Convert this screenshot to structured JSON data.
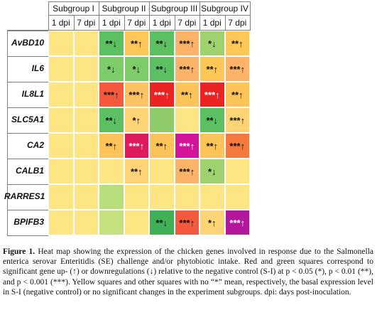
{
  "subgroups": [
    "Subgroup I",
    "Subgroup II",
    "Subgroup III",
    "Subgroup IV"
  ],
  "timepoints": [
    "1 dpi",
    "7 dpi",
    "1 dpi",
    "7 dpi",
    "1 dpi",
    "7 dpi",
    "1 dpi",
    "7 dpi"
  ],
  "genes": [
    "AvBD10",
    "IL6",
    "IL8L1",
    "SLC5A1",
    "CA2",
    "CALB1",
    "RARRES1",
    "BPIFB3"
  ],
  "chart_data": {
    "type": "heatmap",
    "rows": [
      "AvBD10",
      "IL6",
      "IL8L1",
      "SLC5A1",
      "CA2",
      "CALB1",
      "RARRES1",
      "BPIFB3"
    ],
    "columns": [
      "Subgroup I 1 dpi",
      "Subgroup I 7 dpi",
      "Subgroup II 1 dpi",
      "Subgroup II 7 dpi",
      "Subgroup III 1 dpi",
      "Subgroup III 7 dpi",
      "Subgroup IV 1 dpi",
      "Subgroup IV 7 dpi"
    ],
    "cells": [
      [
        {
          "label": "",
          "color": "#fde583"
        },
        {
          "label": "",
          "color": "#fde583"
        },
        {
          "label": "**↓",
          "color": "#5cbf61"
        },
        {
          "label": "**↑",
          "color": "#ffc658"
        },
        {
          "label": "**↓",
          "color": "#5cbf61"
        },
        {
          "label": "***↑",
          "color": "#fdb368"
        },
        {
          "label": "*↓",
          "color": "#9fd26e"
        },
        {
          "label": "**↑",
          "color": "#ffc658"
        }
      ],
      [
        {
          "label": "",
          "color": "#fde583"
        },
        {
          "label": "",
          "color": "#fde583"
        },
        {
          "label": "*↓",
          "color": "#7ecb6a"
        },
        {
          "label": "*↓",
          "color": "#7ecb6a"
        },
        {
          "label": "**↓",
          "color": "#5cbf61"
        },
        {
          "label": "***↑",
          "color": "#fdb368"
        },
        {
          "label": "**↑",
          "color": "#ffc658"
        },
        {
          "label": "***↑",
          "color": "#fdb368"
        }
      ],
      [
        {
          "label": "",
          "color": "#fde583"
        },
        {
          "label": "",
          "color": "#fde583"
        },
        {
          "label": "***↑",
          "color": "#f4593e"
        },
        {
          "label": "***↑",
          "color": "#fdc264"
        },
        {
          "label": "***↑",
          "color": "#ec2323"
        },
        {
          "label": "**↑",
          "color": "#fec359"
        },
        {
          "label": "***↑",
          "color": "#ec2323"
        },
        {
          "label": "**↑",
          "color": "#fec359"
        }
      ],
      [
        {
          "label": "",
          "color": "#fde583"
        },
        {
          "label": "",
          "color": "#fde583"
        },
        {
          "label": "**↓",
          "color": "#5cbf61"
        },
        {
          "label": "*↑",
          "color": "#fed476"
        },
        {
          "label": "",
          "color": "#8fcb6a"
        },
        {
          "label": "",
          "color": "#fde583"
        },
        {
          "label": "**↓",
          "color": "#5cbf61"
        },
        {
          "label": "***↑",
          "color": "#fed476"
        }
      ],
      [
        {
          "label": "",
          "color": "#fde583"
        },
        {
          "label": "",
          "color": "#fde583"
        },
        {
          "label": "**↑",
          "color": "#fec359"
        },
        {
          "label": "***↑",
          "color": "#dd1a5e"
        },
        {
          "label": "**↑",
          "color": "#fec359"
        },
        {
          "label": "***↑",
          "color": "#d3149a"
        },
        {
          "label": "**↑",
          "color": "#fec359"
        },
        {
          "label": "***↑",
          "color": "#f4793f"
        }
      ],
      [
        {
          "label": "",
          "color": "#fde583"
        },
        {
          "label": "",
          "color": "#fde583"
        },
        {
          "label": "",
          "color": "#fde583"
        },
        {
          "label": "**↑",
          "color": "#fed476"
        },
        {
          "label": "",
          "color": "#fde583"
        },
        {
          "label": "***↑",
          "color": "#fdb368"
        },
        {
          "label": "*↓",
          "color": "#9fd26e"
        },
        {
          "label": "",
          "color": "#fde583"
        }
      ],
      [
        {
          "label": "",
          "color": "#fde583"
        },
        {
          "label": "",
          "color": "#fde583"
        },
        {
          "label": "",
          "color": "#b7dd7d"
        },
        {
          "label": "",
          "color": "#fde583"
        },
        {
          "label": "",
          "color": "#fde583"
        },
        {
          "label": "",
          "color": "#fde583"
        },
        {
          "label": "",
          "color": "#fde583"
        },
        {
          "label": "",
          "color": "#fde583"
        }
      ],
      [
        {
          "label": "",
          "color": "#fde583"
        },
        {
          "label": "",
          "color": "#fde583"
        },
        {
          "label": "",
          "color": "#c5e07f"
        },
        {
          "label": "",
          "color": "#fde583"
        },
        {
          "label": "**↓",
          "color": "#3fb056"
        },
        {
          "label": "***↑",
          "color": "#f4593e"
        },
        {
          "label": "*↑",
          "color": "#fed476"
        },
        {
          "label": "***↑",
          "color": "#b3179c"
        }
      ]
    ]
  },
  "caption": {
    "label": "Figure 1.",
    "text": "Heat map showing the expression of the chicken genes involved in response due to the Salmonella enterica serovar Enteritidis (SE) challenge and/or phytobiotic intake. Red and green squares correspond to significant gene up- (↑) or downregulations (↓) relative to the negative control (S-I) at p < 0.05 (*), p < 0.01 (**), and p < 0.001 (***). Yellow squares and other squares with no “*” mean, respectively, the basal expression level in S-I (negative control) or no significant changes in the experiment subgroups. dpi: days post-inoculation."
  }
}
